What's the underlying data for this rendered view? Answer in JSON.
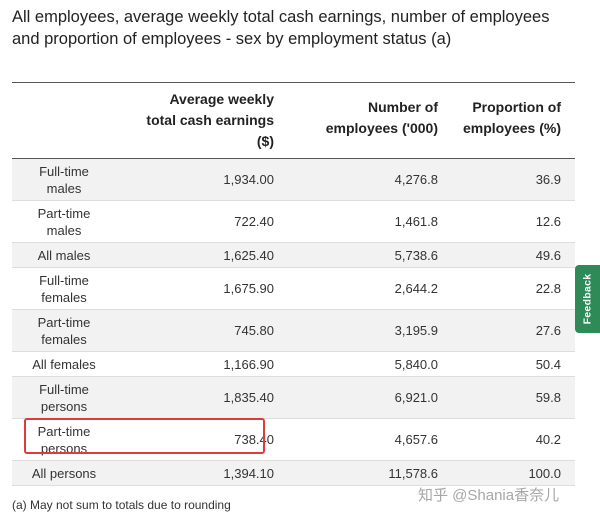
{
  "title": "All employees, average weekly total cash earnings, number of employees and proportion of employees - sex by employment status (a)",
  "table": {
    "headers": {
      "col0": "",
      "col1_lines": [
        "Average weekly",
        "total cash earnings",
        "($)"
      ],
      "col2_lines": [
        "Number of",
        "employees ('000)"
      ],
      "col3_lines": [
        "Proportion of",
        "employees (%)"
      ]
    },
    "rows": [
      {
        "label_lines": [
          "Full-time",
          "males"
        ],
        "earnings": "1,934.00",
        "employees": "4,276.8",
        "proportion": "36.9"
      },
      {
        "label_lines": [
          "Part-time",
          "males"
        ],
        "earnings": "722.40",
        "employees": "1,461.8",
        "proportion": "12.6"
      },
      {
        "label_lines": [
          "All males"
        ],
        "earnings": "1,625.40",
        "employees": "5,738.6",
        "proportion": "49.6"
      },
      {
        "label_lines": [
          "Full-time",
          "females"
        ],
        "earnings": "1,675.90",
        "employees": "2,644.2",
        "proportion": "22.8"
      },
      {
        "label_lines": [
          "Part-time",
          "females"
        ],
        "earnings": "745.80",
        "employees": "3,195.9",
        "proportion": "27.6"
      },
      {
        "label_lines": [
          "All females"
        ],
        "earnings": "1,166.90",
        "employees": "5,840.0",
        "proportion": "50.4"
      },
      {
        "label_lines": [
          "Full-time",
          "persons"
        ],
        "earnings": "1,835.40",
        "employees": "6,921.0",
        "proportion": "59.8"
      },
      {
        "label_lines": [
          "Part-time",
          "persons"
        ],
        "earnings": "738.40",
        "employees": "4,657.6",
        "proportion": "40.2"
      },
      {
        "label_lines": [
          "All persons"
        ],
        "earnings": "1,394.10",
        "employees": "11,578.6",
        "proportion": "100.0"
      }
    ]
  },
  "footnote": "(a) May not sum to totals due to rounding",
  "watermark": "知乎 @Shania香奈儿",
  "feedback_label": "Feedback",
  "colors": {
    "highlight": "#e03a3a",
    "feedback_bg": "#2e8b57",
    "stripe": "#f2f2f2"
  }
}
